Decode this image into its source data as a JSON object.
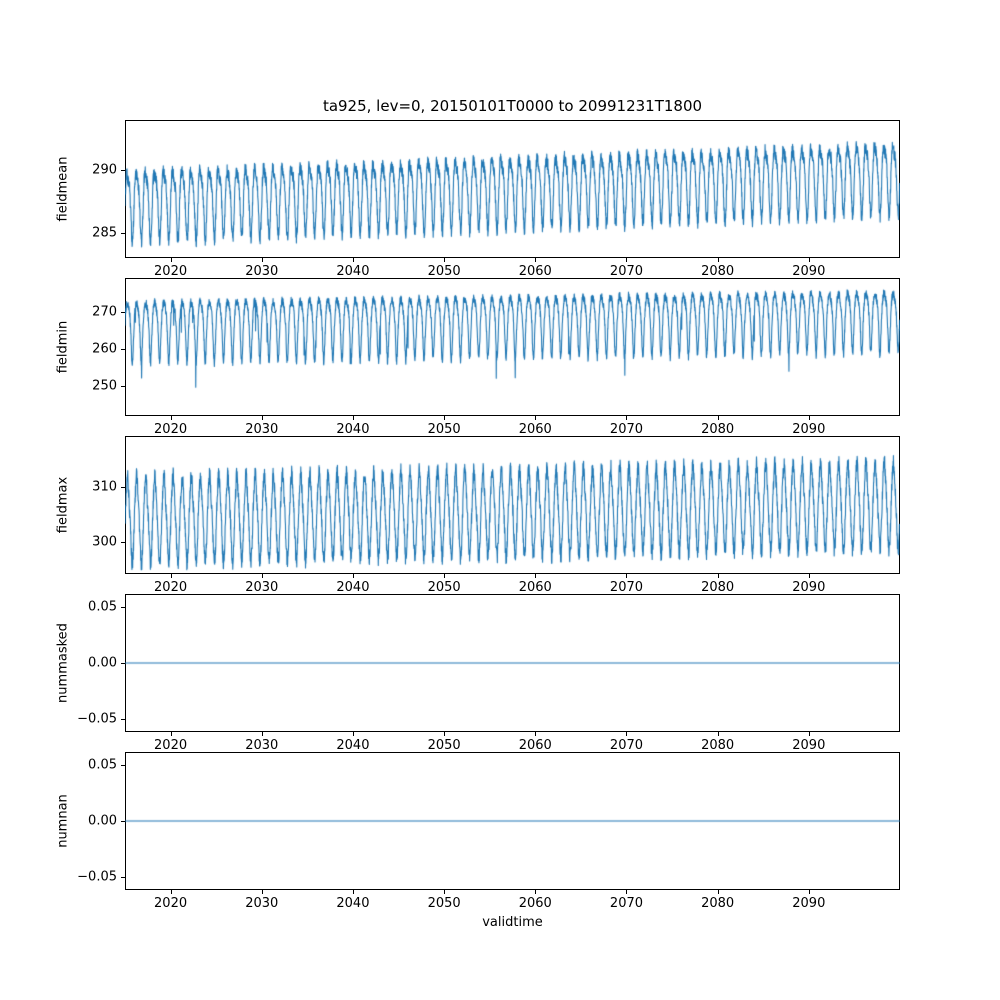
{
  "title": "ta925, lev=0, 20150101T0000 to 20991231T1800",
  "xlabel": "validtime",
  "style": {
    "line_color": "#1f77b4",
    "axis_color": "#000000",
    "background": "#ffffff"
  },
  "chart_data": [
    {
      "type": "line",
      "name": "fieldmean",
      "ylabel": "fieldmean",
      "x_range": [
        2015,
        2100
      ],
      "xticks": [
        2020,
        2030,
        2040,
        2050,
        2060,
        2070,
        2080,
        2090
      ],
      "x_tick_labels": [
        "2020",
        "2030",
        "2040",
        "2050",
        "2060",
        "2070",
        "2080",
        "2090"
      ],
      "ylim": [
        283.0,
        294.0
      ],
      "yticks": [
        285,
        290
      ],
      "ytick_labels": [
        "285",
        "290"
      ],
      "grid": false,
      "legend": "none",
      "series_model": {
        "kind": "seasonal",
        "base_start": 287.5,
        "base_end": 289.7,
        "amp1": 2.6,
        "amp2": 0.7,
        "skew": 0,
        "noise": 0.55,
        "spike_prob": 0,
        "spike_mag": 0,
        "seed": 7,
        "summary": "annual cycle ~284-291 in 2015 rising to ~286-293.5 by 2099"
      }
    },
    {
      "type": "line",
      "name": "fieldmin",
      "ylabel": "fieldmin",
      "x_range": [
        2015,
        2100
      ],
      "xticks": [
        2020,
        2030,
        2040,
        2050,
        2060,
        2070,
        2080,
        2090
      ],
      "x_tick_labels": [
        "2020",
        "2030",
        "2040",
        "2050",
        "2060",
        "2070",
        "2080",
        "2090"
      ],
      "ylim": [
        242.0,
        279.0
      ],
      "yticks": [
        250,
        260,
        270
      ],
      "ytick_labels": [
        "250",
        "260",
        "270"
      ],
      "grid": false,
      "legend": "none",
      "series_model": {
        "kind": "seasonal",
        "base_start": 267.5,
        "base_end": 270.2,
        "amp1": 5.5,
        "amp2": 1.0,
        "skew": -5,
        "noise": 1.2,
        "spike_prob": 0.005,
        "spike_mag": -9,
        "spike_fade": true,
        "seed": 13,
        "summary": "annual cycle peaks ~272-277, troughs ~252-258, sporadic dips to ~245 (more frequent before 2050), slight upward trend"
      }
    },
    {
      "type": "line",
      "name": "fieldmax",
      "ylabel": "fieldmax",
      "x_range": [
        2015,
        2100
      ],
      "xticks": [
        2020,
        2030,
        2040,
        2050,
        2060,
        2070,
        2080,
        2090
      ],
      "x_tick_labels": [
        "2020",
        "2030",
        "2040",
        "2050",
        "2060",
        "2070",
        "2080",
        "2090"
      ],
      "ylim": [
        294.0,
        319.5
      ],
      "yticks": [
        300,
        310
      ],
      "ytick_labels": [
        "300",
        "310"
      ],
      "grid": false,
      "legend": "none",
      "series_model": {
        "kind": "seasonal",
        "base_start": 303.5,
        "base_end": 306.3,
        "amp1": 6.5,
        "amp2": 1.2,
        "skew": 3,
        "noise": 1.5,
        "spike_prob": 0,
        "spike_mag": 0,
        "seed": 21,
        "summary": "annual cycle peaks ~312-318, troughs ~296-300, slight upward trend"
      }
    },
    {
      "type": "line",
      "name": "nummasked",
      "ylabel": "nummasked",
      "x_range": [
        2015,
        2100
      ],
      "xticks": [
        2020,
        2030,
        2040,
        2050,
        2060,
        2070,
        2080,
        2090
      ],
      "x_tick_labels": [
        "2020",
        "2030",
        "2040",
        "2050",
        "2060",
        "2070",
        "2080",
        "2090"
      ],
      "ylim": [
        -0.0615,
        0.0615
      ],
      "yticks": [
        0.05,
        0.0,
        -0.05
      ],
      "ytick_labels": [
        "0.05",
        "0.00",
        "−0.05"
      ],
      "grid": false,
      "legend": "none",
      "series_model": {
        "kind": "constant",
        "value": 0,
        "summary": "constant 0 for entire period"
      }
    },
    {
      "type": "line",
      "name": "numnan",
      "ylabel": "numnan",
      "x_range": [
        2015,
        2100
      ],
      "xticks": [
        2020,
        2030,
        2040,
        2050,
        2060,
        2070,
        2080,
        2090
      ],
      "x_tick_labels": [
        "2020",
        "2030",
        "2040",
        "2050",
        "2060",
        "2070",
        "2080",
        "2090"
      ],
      "ylim": [
        -0.0615,
        0.0615
      ],
      "yticks": [
        0.05,
        0.0,
        -0.05
      ],
      "ytick_labels": [
        "0.05",
        "0.00",
        "−0.05"
      ],
      "grid": false,
      "legend": "none",
      "series_model": {
        "kind": "constant",
        "value": 0,
        "summary": "constant 0 for entire period"
      }
    }
  ]
}
